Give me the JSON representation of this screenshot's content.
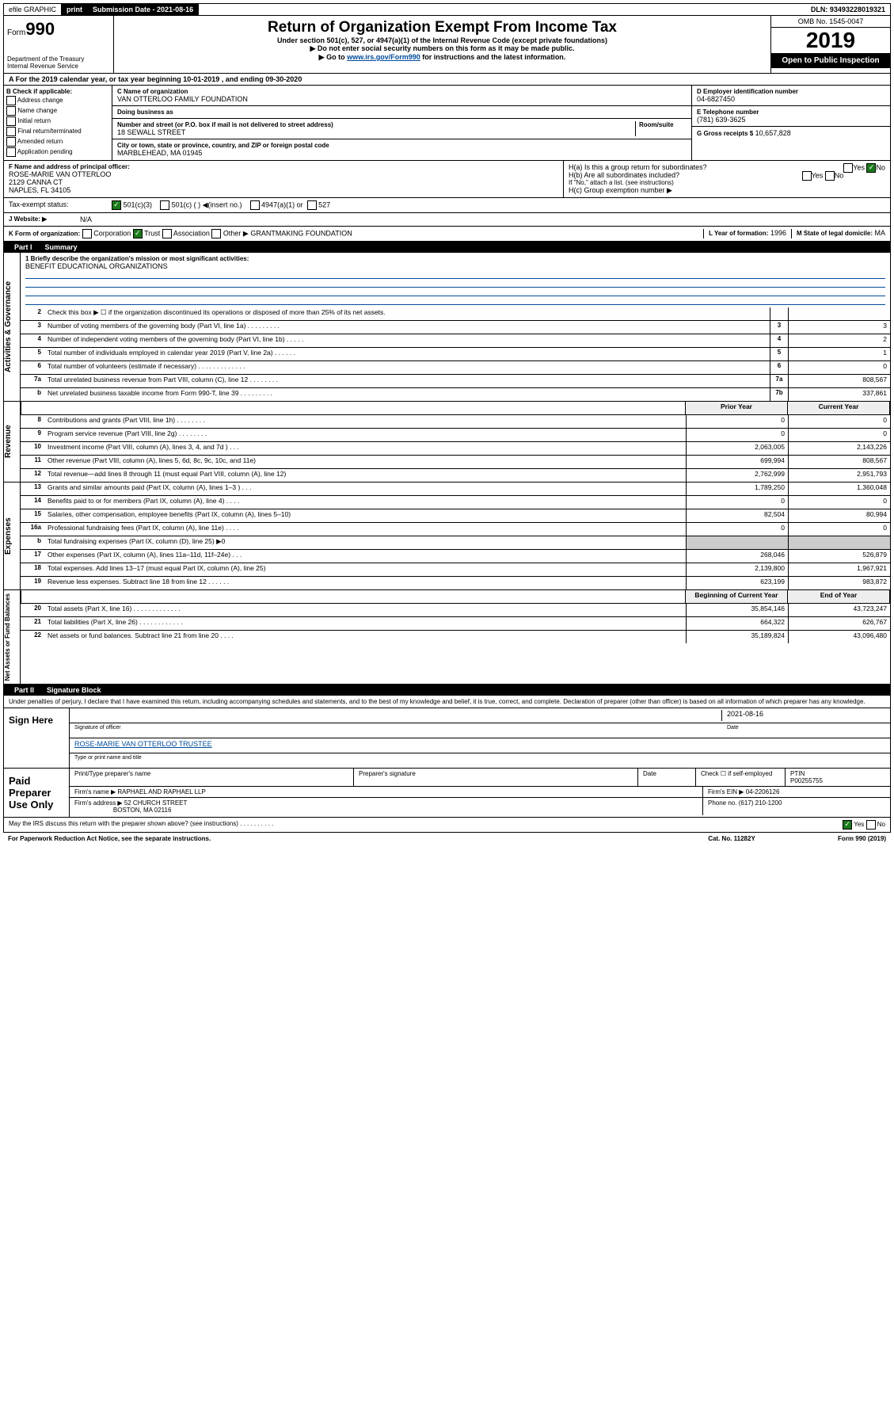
{
  "topbar": {
    "efile": "efile GRAPHIC",
    "print": "print",
    "submission_label": "Submission Date - 2021-08-16",
    "dln": "DLN: 93493228019321"
  },
  "header": {
    "form": "990",
    "form_prefix": "Form",
    "dept": "Department of the Treasury\nInternal Revenue Service",
    "title": "Return of Organization Exempt From Income Tax",
    "sub1": "Under section 501(c), 527, or 4947(a)(1) of the Internal Revenue Code (except private foundations)",
    "sub2": "Do not enter social security numbers on this form as it may be made public.",
    "sub3_prefix": "Go to ",
    "sub3_link": "www.irs.gov/Form990",
    "sub3_suffix": " for instructions and the latest information.",
    "omb": "OMB No. 1545-0047",
    "year": "2019",
    "open": "Open to Public Inspection"
  },
  "row_a": "A For the 2019 calendar year, or tax year beginning 10-01-2019    , and ending 09-30-2020",
  "section_b": {
    "label": "B Check if applicable:",
    "items": [
      "Address change",
      "Name change",
      "Initial return",
      "Final return/terminated",
      "Amended return",
      "Application pending"
    ]
  },
  "section_c": {
    "name_label": "C Name of organization",
    "name": "VAN OTTERLOO FAMILY FOUNDATION",
    "dba_label": "Doing business as",
    "addr_label": "Number and street (or P.O. box if mail is not delivered to street address)",
    "room_label": "Room/suite",
    "addr": "18 SEWALL STREET",
    "city_label": "City or town, state or province, country, and ZIP or foreign postal code",
    "city": "MARBLEHEAD, MA  01945"
  },
  "section_d": {
    "ein_label": "D Employer identification number",
    "ein": "04-6827450",
    "tel_label": "E Telephone number",
    "tel": "(781) 639-3625",
    "gross_label": "G Gross receipts $",
    "gross": "10,657,828"
  },
  "section_f": {
    "label": "F Name and address of principal officer:",
    "name": "ROSE-MARIE VAN OTTERLOO",
    "addr1": "2129 CANNA CT",
    "addr2": "NAPLES, FL  34105"
  },
  "section_h": {
    "a": "H(a)  Is this a group return for subordinates?",
    "b": "H(b)  Are all subordinates included?",
    "b_note": "If \"No,\" attach a list. (see instructions)",
    "c": "H(c)  Group exemption number ▶"
  },
  "tax_exempt": {
    "label": "Tax-exempt status:",
    "opt1": "501(c)(3)",
    "opt2": "501(c) (  ) ◀(insert no.)",
    "opt3": "4947(a)(1) or",
    "opt4": "527"
  },
  "website": {
    "label": "J  Website: ▶",
    "val": "N/A"
  },
  "row_k": {
    "label": "K Form of organization:",
    "opts": [
      "Corporation",
      "Trust",
      "Association",
      "Other ▶"
    ],
    "other": "GRANTMAKING FOUNDATION",
    "l_label": "L Year of formation:",
    "l_val": "1996",
    "m_label": "M State of legal domicile:",
    "m_val": "MA"
  },
  "part1": {
    "label": "Part I",
    "title": "Summary"
  },
  "mission": {
    "q": "1  Briefly describe the organization's mission or most significant activities:",
    "a": "BENEFIT EDUCATIONAL ORGANIZATIONS"
  },
  "governance": {
    "side": "Activities & Governance",
    "lines": [
      {
        "n": "2",
        "d": "Check this box ▶ ☐  if the organization discontinued its operations or disposed of more than 25% of its net assets."
      },
      {
        "n": "3",
        "d": "Number of voting members of the governing body (Part VI, line 1a)  .   .   .   .   .   .   .   .   .",
        "box": "3",
        "v": "3"
      },
      {
        "n": "4",
        "d": "Number of independent voting members of the governing body (Part VI, line 1b)  .   .   .   .   .",
        "box": "4",
        "v": "2"
      },
      {
        "n": "5",
        "d": "Total number of individuals employed in calendar year 2019 (Part V, line 2a)  .   .   .   .   .   .",
        "box": "5",
        "v": "1"
      },
      {
        "n": "6",
        "d": "Total number of volunteers (estimate if necessary)  .   .   .   .   .   .   .   .   .   .   .   .   .",
        "box": "6",
        "v": "0"
      },
      {
        "n": "7a",
        "d": "Total unrelated business revenue from Part VIII, column (C), line 12  .   .   .   .   .   .   .   .",
        "box": "7a",
        "v": "808,567"
      },
      {
        "n": "b",
        "d": "Net unrelated business taxable income from Form 990-T, line 39  .   .   .   .   .   .   .   .   .",
        "box": "7b",
        "v": "337,861"
      }
    ]
  },
  "revenue": {
    "side": "Revenue",
    "header": {
      "c1": "Prior Year",
      "c2": "Current Year"
    },
    "lines": [
      {
        "n": "8",
        "d": "Contributions and grants (Part VIII, line 1h)  .   .   .   .   .   .   .   .",
        "v1": "0",
        "v2": "0"
      },
      {
        "n": "9",
        "d": "Program service revenue (Part VIII, line 2g)  .   .   .   .   .   .   .   .",
        "v1": "0",
        "v2": "0"
      },
      {
        "n": "10",
        "d": "Investment income (Part VIII, column (A), lines 3, 4, and 7d )  .   .   .",
        "v1": "2,063,005",
        "v2": "2,143,226"
      },
      {
        "n": "11",
        "d": "Other revenue (Part VIII, column (A), lines 5, 6d, 8c, 9c, 10c, and 11e)",
        "v1": "699,994",
        "v2": "808,567"
      },
      {
        "n": "12",
        "d": "Total revenue—add lines 8 through 11 (must equal Part VIII, column (A), line 12)",
        "v1": "2,762,999",
        "v2": "2,951,793"
      }
    ]
  },
  "expenses": {
    "side": "Expenses",
    "lines": [
      {
        "n": "13",
        "d": "Grants and similar amounts paid (Part IX, column (A), lines 1–3 )  .   .   .",
        "v1": "1,789,250",
        "v2": "1,360,048"
      },
      {
        "n": "14",
        "d": "Benefits paid to or for members (Part IX, column (A), line 4)  .   .   .   .",
        "v1": "0",
        "v2": "0"
      },
      {
        "n": "15",
        "d": "Salaries, other compensation, employee benefits (Part IX, column (A), lines 5–10)",
        "v1": "82,504",
        "v2": "80,994"
      },
      {
        "n": "16a",
        "d": "Professional fundraising fees (Part IX, column (A), line 11e)  .   .   .   .",
        "v1": "0",
        "v2": "0"
      },
      {
        "n": "b",
        "d": "Total fundraising expenses (Part IX, column (D), line 25) ▶0",
        "grey": true
      },
      {
        "n": "17",
        "d": "Other expenses (Part IX, column (A), lines 11a–11d, 11f–24e)  .   .   .",
        "v1": "268,046",
        "v2": "526,879"
      },
      {
        "n": "18",
        "d": "Total expenses. Add lines 13–17 (must equal Part IX, column (A), line 25)",
        "v1": "2,139,800",
        "v2": "1,967,921"
      },
      {
        "n": "19",
        "d": "Revenue less expenses. Subtract line 18 from line 12  .   .   .   .   .   .",
        "v1": "623,199",
        "v2": "983,872"
      }
    ]
  },
  "netassets": {
    "side": "Net Assets or Fund Balances",
    "header": {
      "c1": "Beginning of Current Year",
      "c2": "End of Year"
    },
    "lines": [
      {
        "n": "20",
        "d": "Total assets (Part X, line 16)  .   .   .   .   .   .   .   .   .   .   .   .   .",
        "v1": "35,854,146",
        "v2": "43,723,247"
      },
      {
        "n": "21",
        "d": "Total liabilities (Part X, line 26)  .   .   .   .   .   .   .   .   .   .   .   .",
        "v1": "664,322",
        "v2": "626,767"
      },
      {
        "n": "22",
        "d": "Net assets or fund balances. Subtract line 21 from line 20  .   .   .   .",
        "v1": "35,189,824",
        "v2": "43,096,480"
      }
    ]
  },
  "part2": {
    "label": "Part II",
    "title": "Signature Block"
  },
  "perjury": "Under penalties of perjury, I declare that I have examined this return, including accompanying schedules and statements, and to the best of my knowledge and belief, it is true, correct, and complete. Declaration of preparer (other than officer) is based on all information of which preparer has any knowledge.",
  "sign": {
    "label": "Sign Here",
    "date": "2021-08-16",
    "sig_label": "Signature of officer",
    "date_label": "Date",
    "name": "ROSE-MARIE VAN OTTERLOO  TRUSTEE",
    "name_label": "Type or print name and title"
  },
  "paid": {
    "label": "Paid Preparer Use Only",
    "h1": "Print/Type preparer's name",
    "h2": "Preparer's signature",
    "h3": "Date",
    "h4": "Check ☐ if self-employed",
    "ptin_label": "PTIN",
    "ptin": "P00255755",
    "firm_label": "Firm's name    ▶",
    "firm": "RAPHAEL AND RAPHAEL LLP",
    "ein_label": "Firm's EIN ▶",
    "ein": "04-2206126",
    "addr_label": "Firm's address ▶",
    "addr1": "52 CHURCH STREET",
    "addr2": "BOSTON, MA  02116",
    "phone_label": "Phone no.",
    "phone": "(617) 210-1200"
  },
  "footer": {
    "discuss": "May the IRS discuss this return with the preparer shown above? (see instructions)   .   .   .   .   .   .   .   .   .   .",
    "yes": "Yes",
    "no": "No",
    "paperwork": "For Paperwork Reduction Act Notice, see the separate instructions.",
    "cat": "Cat. No. 11282Y",
    "form": "Form 990 (2019)"
  }
}
